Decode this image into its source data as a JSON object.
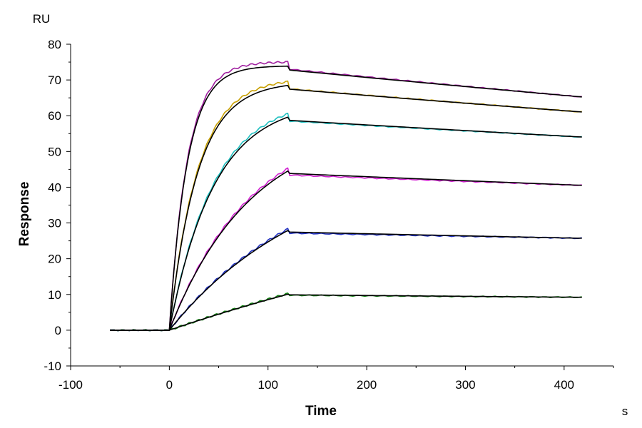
{
  "chart_data": {
    "type": "line",
    "xlabel": "Time",
    "ylabel": "Response",
    "x_unit": "s",
    "y_unit": "RU",
    "xlim": [
      -100,
      450
    ],
    "ylim": [
      -10,
      80
    ],
    "x_ticks": [
      -100,
      0,
      100,
      200,
      300,
      400
    ],
    "y_ticks": [
      -10,
      0,
      10,
      20,
      30,
      40,
      50,
      60,
      70,
      80
    ],
    "grid": false,
    "legend": "none",
    "baseline_start": -60,
    "association_end": 120,
    "dissociation_end": 420,
    "series": [
      {
        "color": "#a020a0",
        "plateau_at_120": 75.0,
        "end_value": 65.2
      },
      {
        "color": "#c8a000",
        "plateau_at_120": 69.5,
        "end_value": 61.0
      },
      {
        "color": "#20c0c0",
        "plateau_at_120": 60.5,
        "end_value": 54.0
      },
      {
        "color": "#d020d0",
        "plateau_at_120": 45.2,
        "end_value": 40.5
      },
      {
        "color": "#2030c0",
        "plateau_at_120": 28.3,
        "end_value": 25.7
      },
      {
        "color": "#108010",
        "plateau_at_120": 10.2,
        "end_value": 9.2
      }
    ],
    "fit_color": "#000000"
  }
}
